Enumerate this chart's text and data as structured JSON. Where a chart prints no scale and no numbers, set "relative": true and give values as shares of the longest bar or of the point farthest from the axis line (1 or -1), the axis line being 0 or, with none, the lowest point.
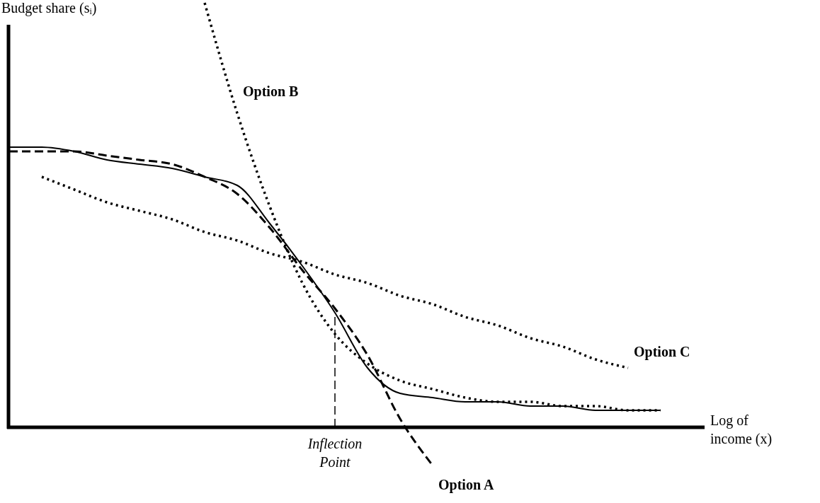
{
  "chart_data": {
    "type": "line",
    "relative": true,
    "ylabel": "Budget share (sᵢ)",
    "xlabel": "Log of income (x)",
    "annotations": [
      "Inflection Point"
    ],
    "categories": [
      null,
      null,
      null,
      null,
      null,
      null,
      null,
      null,
      null,
      null,
      null,
      null,
      null,
      null,
      null,
      null,
      null,
      null,
      null,
      null,
      null
    ],
    "series": [
      {
        "color": "#000000",
        "line_style": "solid",
        "values": [
          0.66,
          0.66,
          0.65,
          0.63,
          0.62,
          0.61,
          0.59,
          0.57,
          0.48,
          0.38,
          0.27,
          0.14,
          0.08,
          0.07,
          0.06,
          0.06,
          0.05,
          0.05,
          0.04,
          0.04,
          0.04
        ]
      },
      {
        "name": "Option A",
        "color": "#000000",
        "line_style": "dashed",
        "values": [
          0.65,
          0.65,
          0.65,
          0.64,
          0.63,
          0.62,
          0.59,
          0.55,
          0.47,
          0.37,
          0.28,
          0.17,
          0.02,
          -0.09,
          null,
          null,
          null,
          null,
          null,
          null,
          null
        ]
      },
      {
        "name": "Option B",
        "color": "#000000",
        "line_style": "dotted",
        "values": [
          null,
          null,
          null,
          null,
          null,
          null,
          1.0,
          0.74,
          0.52,
          0.34,
          0.22,
          0.15,
          0.11,
          0.09,
          0.07,
          0.06,
          0.06,
          0.05,
          0.05,
          0.04,
          0.04
        ]
      },
      {
        "name": "Option C",
        "color": "#000000",
        "line_style": "dotted",
        "values": [
          null,
          0.59,
          0.56,
          0.53,
          0.51,
          0.49,
          0.46,
          0.44,
          0.41,
          0.39,
          0.36,
          0.34,
          0.31,
          0.29,
          0.26,
          0.24,
          0.21,
          0.19,
          0.16,
          0.14,
          null
        ]
      }
    ]
  }
}
